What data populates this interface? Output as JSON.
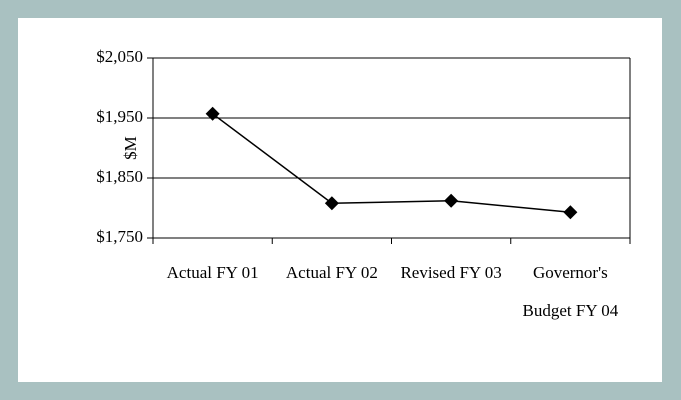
{
  "chart_data": {
    "type": "line",
    "y_label": "$M",
    "categories": [
      "Actual FY 01",
      "Actual FY 02",
      "Revised FY 03",
      "Governor's Budget FY 04"
    ],
    "values": [
      1957,
      1808,
      1812,
      1793
    ],
    "color": "#000000",
    "ylim": [
      1750,
      2050
    ],
    "yticks": [
      {
        "value": 1750,
        "label": "$1,750"
      },
      {
        "value": 1850,
        "label": "$1,850"
      },
      {
        "value": 1950,
        "label": "$1,950"
      },
      {
        "value": 2050,
        "label": "$2,050"
      }
    ],
    "grid": true
  }
}
